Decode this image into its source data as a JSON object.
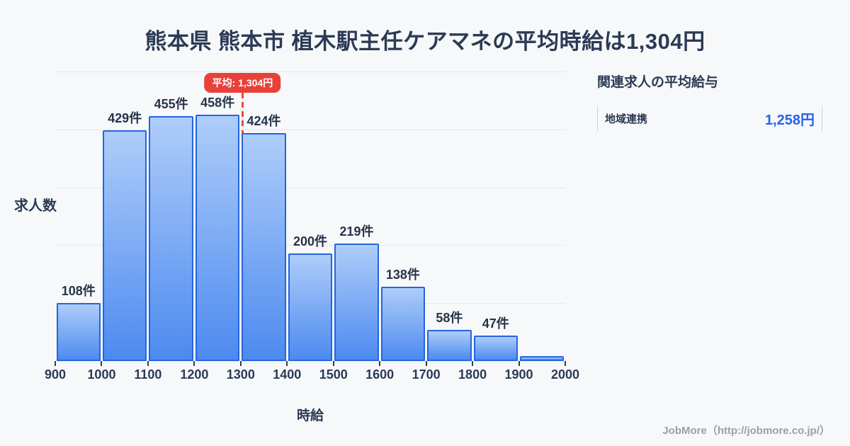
{
  "title": "熊本県 熊本市 植木駅主任ケアマネの平均時給は1,304円",
  "chart_data": {
    "type": "bar",
    "xlabel": "時給",
    "ylabel": "求人数",
    "x_tick_labels": [
      "900",
      "1000",
      "1100",
      "1200",
      "1300",
      "1400",
      "1500",
      "1600",
      "1700",
      "1800",
      "1900",
      "2000"
    ],
    "xlim": [
      900,
      2000
    ],
    "ylim": [
      0,
      538
    ],
    "grid": "horizontal-only",
    "gridline_count": 5,
    "bins": [
      {
        "range": "900-1000",
        "count": 108,
        "label": "108件"
      },
      {
        "range": "1000-1100",
        "count": 429,
        "label": "429件"
      },
      {
        "range": "1100-1200",
        "count": 455,
        "label": "455件"
      },
      {
        "range": "1200-1300",
        "count": 458,
        "label": "458件"
      },
      {
        "range": "1300-1400",
        "count": 424,
        "label": "424件"
      },
      {
        "range": "1400-1500",
        "count": 200,
        "label": "200件"
      },
      {
        "range": "1500-1600",
        "count": 219,
        "label": "219件"
      },
      {
        "range": "1600-1700",
        "count": 138,
        "label": "138件"
      },
      {
        "range": "1700-1800",
        "count": 58,
        "label": "58件"
      },
      {
        "range": "1800-1900",
        "count": 47,
        "label": "47件"
      },
      {
        "range": "1900-2000",
        "count": 9,
        "label": "",
        "estimated": true
      }
    ],
    "average": {
      "value": 1304,
      "label": "平均: 1,304円"
    }
  },
  "side_panel": {
    "heading": "関連求人の平均給与",
    "rows": [
      {
        "label": "地域連携",
        "value": "1,258円"
      }
    ]
  },
  "footer": {
    "credit": "JobMore（http://jobmore.co.jp/）"
  },
  "colors": {
    "background": "#f7f8fa",
    "text_dark": "#2b3a55",
    "bar_fill_top": "#aecdf9",
    "bar_fill_bottom": "#4d8af0",
    "bar_border": "#2465e0",
    "gridline": "#e5e8ee",
    "average_red": "#e8413a",
    "value_blue": "#2563eb",
    "footer_gray": "#9aa0a8",
    "panel_border": "#ccd2d9"
  }
}
